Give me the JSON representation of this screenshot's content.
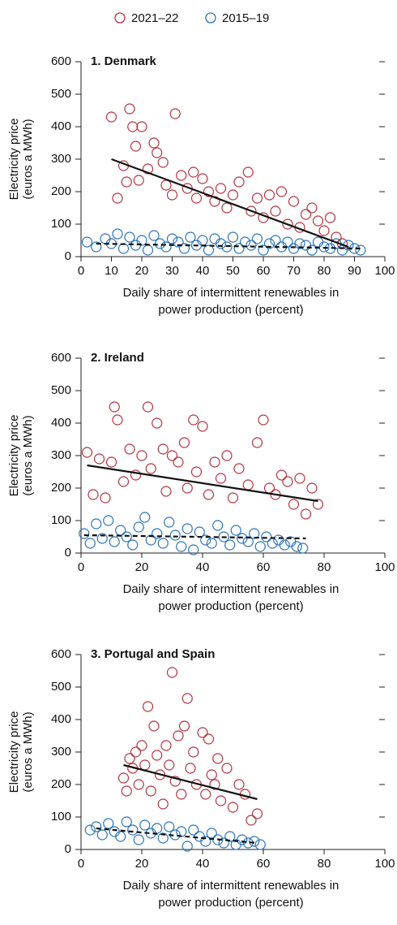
{
  "chart_data": [
    {
      "type": "scatter",
      "title": "1. Denmark",
      "ylabel": [
        "Electricity price",
        "(euros a MWh)"
      ],
      "xlabel": [
        "Daily share of intermittent renewables in",
        "power production (percent)"
      ],
      "xlim": [
        0,
        100
      ],
      "xticks": [
        0,
        10,
        20,
        30,
        40,
        50,
        60,
        70,
        80,
        90,
        100
      ],
      "ylim": [
        0,
        600
      ],
      "yticks": [
        0,
        100,
        200,
        300,
        400,
        500,
        600
      ],
      "series": [
        {
          "name": "2021–22",
          "color": "#b5323a",
          "x": [
            10,
            12,
            14,
            15,
            16,
            17,
            18,
            19,
            20,
            22,
            24,
            25,
            27,
            28,
            30,
            31,
            33,
            35,
            37,
            38,
            40,
            42,
            44,
            46,
            48,
            50,
            52,
            55,
            56,
            58,
            60,
            62,
            64,
            66,
            68,
            70,
            72,
            74,
            76,
            78,
            80,
            82,
            84,
            86
          ],
          "values": [
            430,
            180,
            280,
            230,
            455,
            400,
            340,
            235,
            400,
            270,
            350,
            320,
            290,
            220,
            190,
            440,
            250,
            210,
            260,
            180,
            240,
            200,
            170,
            210,
            150,
            190,
            230,
            260,
            140,
            180,
            120,
            190,
            140,
            200,
            100,
            170,
            90,
            130,
            150,
            110,
            80,
            120,
            60,
            40
          ],
          "trend": {
            "x": [
              10,
              88
            ],
            "values": [
              300,
              30
            ]
          }
        },
        {
          "name": "2015–19",
          "color": "#2a73b8",
          "x": [
            2,
            5,
            8,
            10,
            12,
            14,
            16,
            18,
            20,
            22,
            24,
            26,
            28,
            30,
            32,
            34,
            36,
            38,
            40,
            42,
            44,
            46,
            48,
            50,
            52,
            54,
            56,
            58,
            60,
            62,
            64,
            66,
            68,
            70,
            72,
            74,
            76,
            78,
            80,
            82,
            84,
            86,
            88,
            90,
            92
          ],
          "values": [
            45,
            30,
            55,
            40,
            70,
            25,
            60,
            35,
            50,
            20,
            65,
            40,
            30,
            55,
            45,
            25,
            60,
            35,
            50,
            20,
            55,
            40,
            30,
            60,
            25,
            45,
            35,
            55,
            20,
            40,
            50,
            30,
            45,
            25,
            40,
            35,
            20,
            45,
            30,
            25,
            40,
            20,
            35,
            25,
            20
          ],
          "trend": {
            "x": [
              5,
              92
            ],
            "values": [
              40,
              25
            ]
          }
        }
      ]
    },
    {
      "type": "scatter",
      "title": "2. Ireland",
      "ylabel": [
        "Electricity price",
        "(euros a MWh)"
      ],
      "xlabel": [
        "Daily share of intermittent renewables in",
        "power production (percent)"
      ],
      "xlim": [
        0,
        100
      ],
      "xticks": [
        0,
        20,
        40,
        60,
        80,
        100
      ],
      "ylim": [
        0,
        600
      ],
      "yticks": [
        0,
        100,
        200,
        300,
        400,
        500,
        600
      ],
      "series": [
        {
          "name": "2021–22",
          "color": "#b5323a",
          "x": [
            2,
            4,
            6,
            8,
            10,
            11,
            12,
            14,
            16,
            18,
            20,
            22,
            23,
            25,
            27,
            28,
            30,
            32,
            34,
            35,
            37,
            38,
            40,
            42,
            44,
            46,
            48,
            50,
            52,
            55,
            58,
            60,
            62,
            64,
            66,
            68,
            70,
            72,
            74,
            76,
            78
          ],
          "values": [
            310,
            180,
            290,
            170,
            280,
            450,
            410,
            220,
            320,
            240,
            300,
            450,
            260,
            400,
            320,
            190,
            300,
            280,
            340,
            200,
            410,
            250,
            390,
            180,
            280,
            230,
            300,
            170,
            260,
            210,
            340,
            410,
            200,
            180,
            240,
            220,
            150,
            230,
            120,
            200,
            150
          ],
          "trend": {
            "x": [
              2,
              78
            ],
            "values": [
              270,
              160
            ]
          }
        },
        {
          "name": "2015–19",
          "color": "#2a73b8",
          "x": [
            1,
            3,
            5,
            7,
            9,
            11,
            13,
            15,
            17,
            19,
            21,
            23,
            25,
            27,
            29,
            31,
            33,
            35,
            37,
            39,
            41,
            43,
            45,
            47,
            49,
            51,
            53,
            55,
            57,
            59,
            61,
            63,
            65,
            67,
            69,
            71,
            73
          ],
          "values": [
            60,
            30,
            90,
            45,
            100,
            35,
            70,
            50,
            25,
            80,
            110,
            40,
            60,
            30,
            95,
            55,
            20,
            75,
            10,
            65,
            40,
            30,
            85,
            50,
            25,
            70,
            45,
            35,
            60,
            20,
            50,
            30,
            40,
            25,
            35,
            20,
            15
          ],
          "trend": {
            "x": [
              1,
              74
            ],
            "values": [
              55,
              45
            ]
          }
        }
      ]
    },
    {
      "type": "scatter",
      "title": "3. Portugal and Spain",
      "ylabel": [
        "Electricity price",
        "(euros a MWh)"
      ],
      "xlabel": [
        "Daily share of intermittent renewables in",
        "power production (percent)"
      ],
      "xlim": [
        0,
        100
      ],
      "xticks": [
        0,
        20,
        40,
        60,
        80,
        100
      ],
      "ylim": [
        0,
        600
      ],
      "yticks": [
        0,
        100,
        200,
        300,
        400,
        500,
        600
      ],
      "series": [
        {
          "name": "2021–22",
          "color": "#b5323a",
          "x": [
            14,
            15,
            16,
            17,
            18,
            19,
            20,
            21,
            22,
            23,
            24,
            25,
            26,
            27,
            28,
            29,
            30,
            31,
            32,
            33,
            34,
            35,
            36,
            37,
            38,
            40,
            41,
            42,
            43,
            44,
            45,
            46,
            48,
            50,
            52,
            54,
            56,
            58
          ],
          "values": [
            220,
            180,
            280,
            250,
            300,
            200,
            320,
            260,
            440,
            180,
            380,
            290,
            230,
            140,
            320,
            260,
            545,
            210,
            350,
            170,
            380,
            465,
            250,
            300,
            200,
            360,
            170,
            340,
            230,
            200,
            280,
            150,
            250,
            130,
            200,
            170,
            90,
            110
          ],
          "trend": {
            "x": [
              14,
              58
            ],
            "values": [
              260,
              155
            ]
          }
        },
        {
          "name": "2015–19",
          "color": "#2a73b8",
          "x": [
            3,
            5,
            7,
            9,
            11,
            13,
            15,
            17,
            19,
            21,
            23,
            25,
            27,
            29,
            31,
            33,
            35,
            37,
            39,
            41,
            43,
            45,
            47,
            49,
            51,
            53,
            55,
            57,
            59
          ],
          "values": [
            60,
            70,
            45,
            80,
            55,
            40,
            85,
            60,
            30,
            75,
            50,
            65,
            35,
            70,
            45,
            55,
            10,
            60,
            40,
            25,
            50,
            30,
            20,
            40,
            15,
            30,
            20,
            25,
            15
          ],
          "trend": {
            "x": [
              5,
              58
            ],
            "values": [
              65,
              20
            ]
          }
        }
      ]
    }
  ]
}
